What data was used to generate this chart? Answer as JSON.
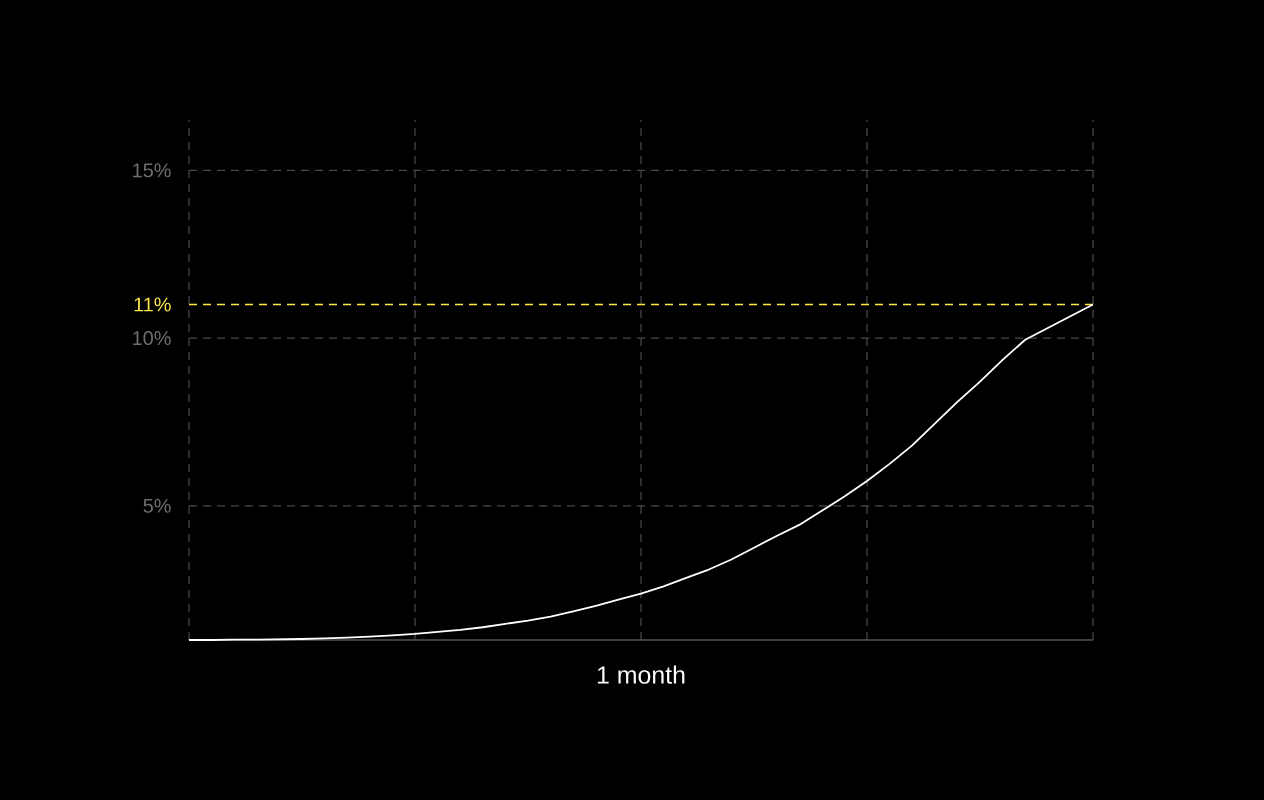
{
  "chart_data": {
    "type": "line",
    "xlabel": "1 month",
    "categories": [
      null,
      null,
      null,
      null,
      null,
      null,
      null,
      null,
      null,
      null,
      null,
      null,
      null,
      null,
      null,
      null,
      null,
      null,
      null,
      null,
      null,
      null,
      null,
      null,
      null,
      null,
      null,
      null,
      null,
      null,
      null,
      null,
      null,
      null,
      null,
      null,
      null,
      null,
      null,
      null,
      null
    ],
    "series": [
      {
        "color": "#ffffff",
        "values": [
          1.0,
          1.0,
          1.01,
          1.01,
          1.02,
          1.03,
          1.05,
          1.07,
          1.1,
          1.14,
          1.18,
          1.24,
          1.3,
          1.38,
          1.48,
          1.58,
          1.7,
          1.85,
          2.02,
          2.2,
          2.38,
          2.6,
          2.85,
          3.1,
          3.4,
          3.75,
          4.1,
          4.43,
          4.85,
          5.28,
          5.74,
          6.25,
          6.8,
          7.45,
          8.1,
          8.7,
          9.35,
          9.95,
          10.3,
          10.65,
          11
        ]
      }
    ],
    "ylim": [
      1,
      16.5
    ],
    "yticks": [
      {
        "value": 5,
        "label": "5%"
      },
      {
        "value": 10,
        "label": "10%"
      },
      {
        "value": 15,
        "label": "15%"
      }
    ],
    "tick_labels": "y",
    "grid": true,
    "ref_lines": [
      {
        "axis": "y",
        "value": 11,
        "label": "11%",
        "color": "#ffe94d",
        "line_style": "dashed"
      }
    ]
  }
}
